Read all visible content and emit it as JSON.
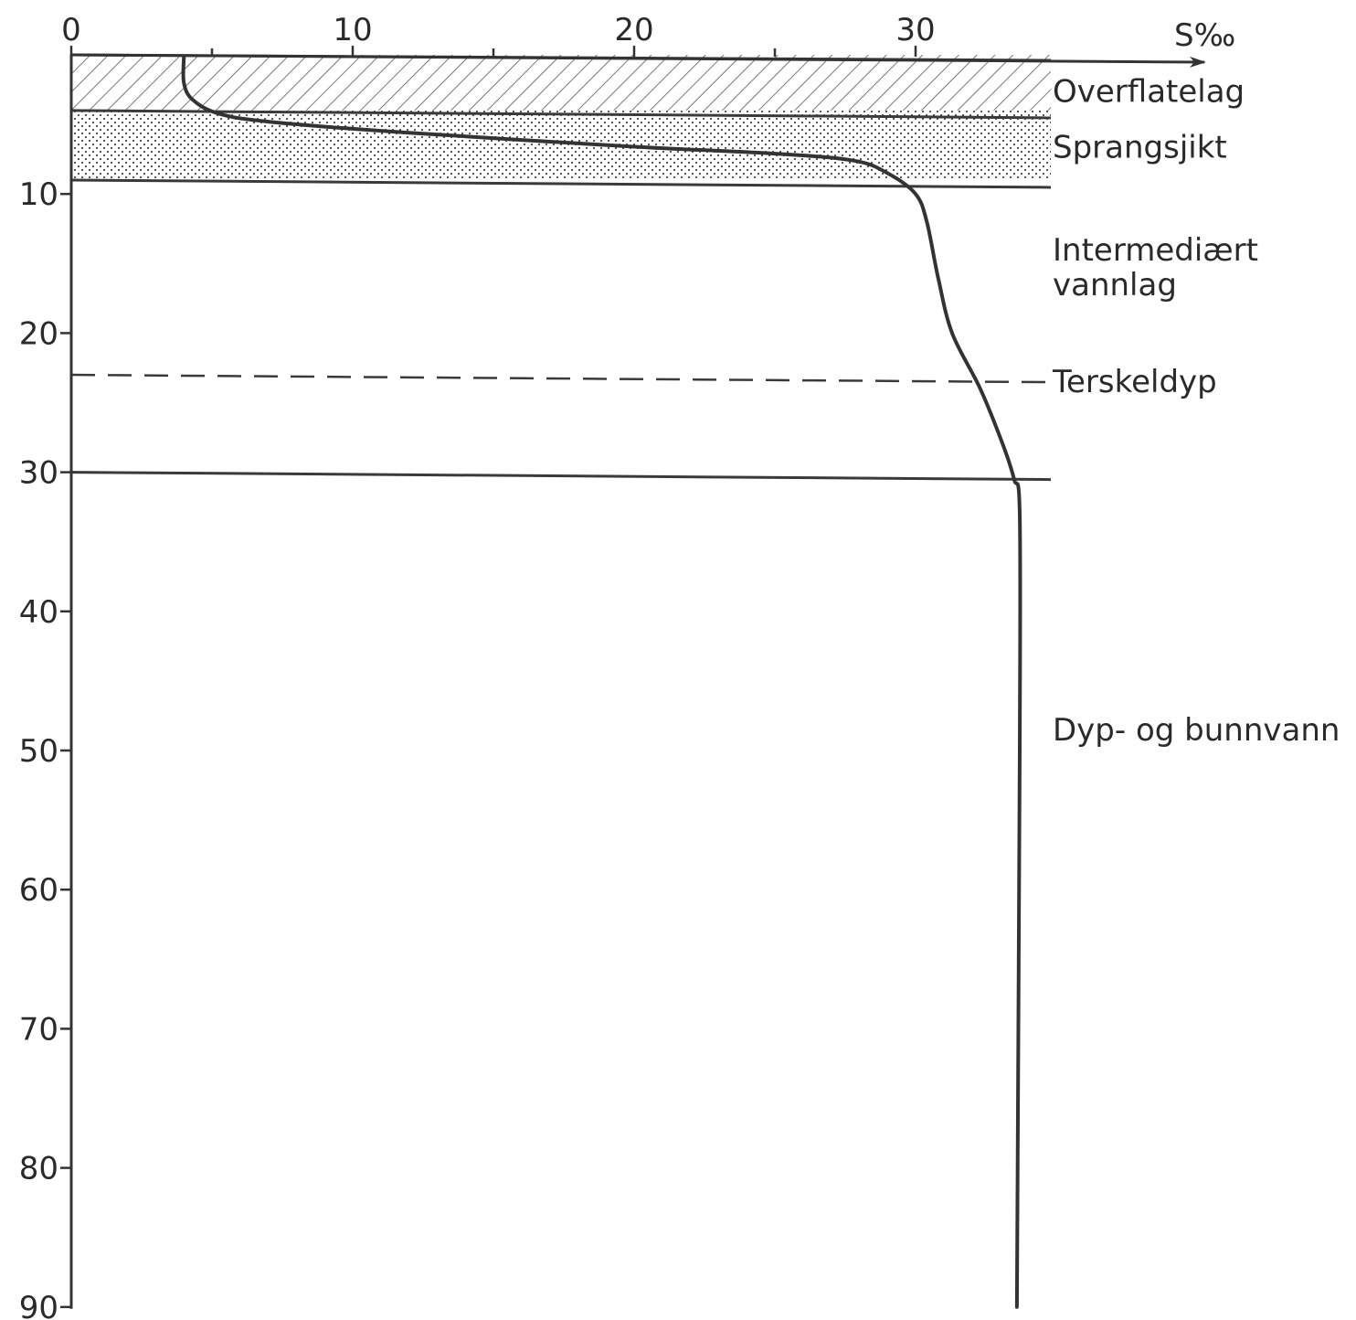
{
  "chart_data": {
    "type": "line",
    "xlabel": "S‰",
    "x_axis_position": "top",
    "y_axis_direction": "downward",
    "xlim": [
      0,
      35
    ],
    "ylim": [
      0,
      90
    ],
    "x_ticks": [
      0,
      10,
      20,
      30
    ],
    "x_minor_ticks": [
      5,
      15,
      25
    ],
    "y_ticks": [
      10,
      20,
      30,
      40,
      50,
      60,
      70,
      80,
      90
    ],
    "grid": false,
    "legend": "none",
    "series": [
      {
        "points": [
          {
            "x": 4.0,
            "y": 0.2
          },
          {
            "x": 4.0,
            "y": 2.0
          },
          {
            "x": 4.3,
            "y": 3.2
          },
          {
            "x": 5.2,
            "y": 4.2
          },
          {
            "x": 7.0,
            "y": 4.8
          },
          {
            "x": 12.0,
            "y": 5.6
          },
          {
            "x": 20.0,
            "y": 6.6
          },
          {
            "x": 25.0,
            "y": 7.1
          },
          {
            "x": 27.8,
            "y": 7.6
          },
          {
            "x": 29.0,
            "y": 8.5
          },
          {
            "x": 30.0,
            "y": 10.0
          },
          {
            "x": 30.4,
            "y": 12.0
          },
          {
            "x": 30.8,
            "y": 16.0
          },
          {
            "x": 31.3,
            "y": 20.0
          },
          {
            "x": 32.3,
            "y": 24.0
          },
          {
            "x": 33.1,
            "y": 28.0
          },
          {
            "x": 33.5,
            "y": 30.5
          },
          {
            "x": 33.7,
            "y": 33.0
          },
          {
            "x": 33.7,
            "y": 50.0
          },
          {
            "x": 33.6,
            "y": 90.0
          }
        ]
      }
    ],
    "layers": [
      {
        "name": "Overflatelag",
        "top": 0,
        "bottom": 4,
        "pattern": "hatched"
      },
      {
        "name": "Sprangsjikt",
        "top": 4,
        "bottom": 9,
        "pattern": "dotted"
      },
      {
        "name": "Intermediært\nvannlag",
        "top": 9,
        "bottom": 30,
        "pattern": "none"
      },
      {
        "name": "Dyp- og bunnvann",
        "top": 30,
        "bottom": 90,
        "pattern": "none"
      }
    ],
    "threshold": {
      "name": "Terskeldyp",
      "y": 23
    }
  }
}
